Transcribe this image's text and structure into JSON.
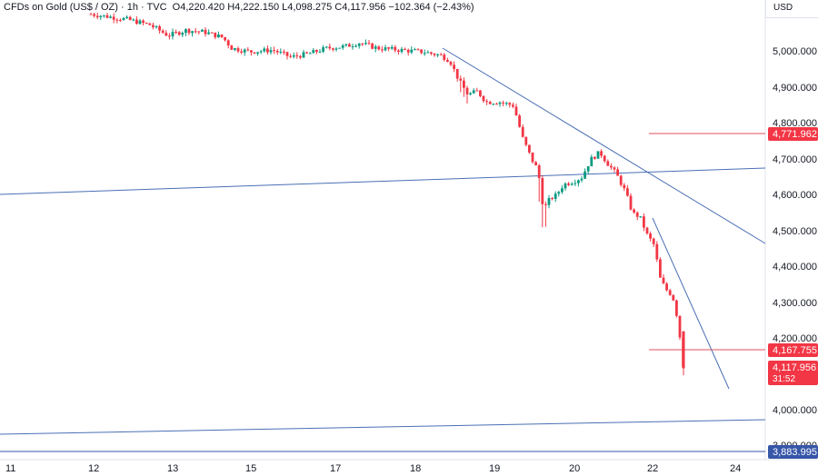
{
  "header": {
    "instrument": "CFDs on Gold (US$ / OZ)",
    "sep1": " · ",
    "timeframe": "1h",
    "sep2": " · ",
    "source": "TVC",
    "ohlc": "O4,220.420  H4,222.150  L4,098.275  C4,117.956  −102.364 (−2.43%)"
  },
  "price_axis": {
    "currency": "USD",
    "ticks": [
      "5,000.000",
      "4,900.000",
      "4,800.000",
      "4,700.000",
      "4,600.000",
      "4,500.000",
      "4,400.000",
      "4,300.000",
      "4,200.000",
      "4,000.000",
      "3,900.000"
    ]
  },
  "time_axis": {
    "ticks": [
      "11",
      "12",
      "13",
      "15",
      "17",
      "18",
      "19",
      "20",
      "22",
      "24"
    ]
  },
  "price_tags": {
    "resistance": "4,771.962",
    "level": "4,167.755",
    "last_price": "4,117.956",
    "countdown": "31:52",
    "support": "3,883.995"
  },
  "colors": {
    "up": "#089981",
    "down": "#f23645",
    "trendline": "#4a6fb5",
    "hline": "#e2525c",
    "support": "#3656a8"
  },
  "chart_data": {
    "type": "candlestick",
    "title": "CFDs on Gold (US$ / OZ)",
    "interval": "1h",
    "ylim": [
      3860,
      5130
    ],
    "x_ticks": [
      "11",
      "12",
      "13",
      "15",
      "17",
      "18",
      "19",
      "20",
      "22",
      "24"
    ],
    "last": {
      "open": 4220.42,
      "high": 4222.15,
      "low": 4098.275,
      "close": 4117.956,
      "change": -102.364,
      "change_pct": -2.43
    },
    "horizontal_levels": [
      4771.962,
      4167.755,
      3883.995
    ],
    "series": [
      {
        "name": "close",
        "x": [
          "12",
          "12.5",
          "13",
          "13.5",
          "14",
          "15",
          "15.5",
          "16",
          "16.5",
          "17",
          "17.5",
          "18",
          "18.2",
          "18.4",
          "18.6",
          "18.8",
          "19",
          "19.2",
          "19.4",
          "19.6",
          "19.8",
          "20",
          "20.2",
          "20.4",
          "20.6",
          "20.8",
          "21",
          "21.2",
          "21.4",
          "21.6",
          "21.8",
          "22",
          "22.2",
          "22.4"
        ],
        "values": [
          5100,
          5080,
          5050,
          5060,
          5020,
          5010,
          4990,
          5000,
          5005,
          5025,
          5015,
          5005,
          4990,
          4900,
          4880,
          4845,
          4855,
          4730,
          4650,
          4590,
          4620,
          4650,
          4720,
          4680,
          4660,
          4640,
          4560,
          4500,
          4480,
          4350,
          4380,
          4310,
          4220,
          4118
        ]
      }
    ]
  }
}
